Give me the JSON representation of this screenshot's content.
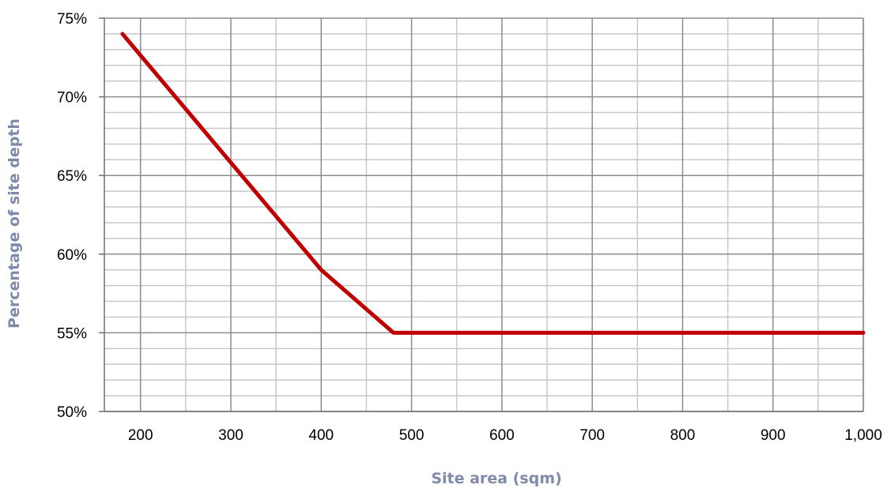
{
  "chart_data": {
    "type": "line",
    "title": "",
    "xlabel": "Site area (sqm)",
    "ylabel": "Percentage of site depth",
    "xlim": [
      160,
      1000
    ],
    "ylim": [
      50,
      75
    ],
    "x_ticks": [
      200,
      300,
      400,
      500,
      600,
      700,
      800,
      900,
      1000
    ],
    "x_tick_labels": [
      "200",
      "300",
      "400",
      "500",
      "600",
      "700",
      "800",
      "900",
      "1,000"
    ],
    "y_ticks": [
      50,
      55,
      60,
      65,
      70,
      75
    ],
    "y_tick_labels": [
      "50%",
      "55%",
      "60%",
      "65%",
      "70%",
      "75%"
    ],
    "x_minor_step": 50,
    "y_minor_step": 1,
    "grid": true,
    "series": [
      {
        "x": [
          180,
          400,
          480,
          1000
        ],
        "y": [
          74,
          59,
          55,
          55
        ],
        "color": "#c00000"
      }
    ],
    "colors": {
      "line": "#c00000",
      "axis_title": "#7f8aaa",
      "major_grid": "#8c8c8c",
      "minor_grid": "#c8c8c8",
      "tick_text": "#000000"
    }
  }
}
